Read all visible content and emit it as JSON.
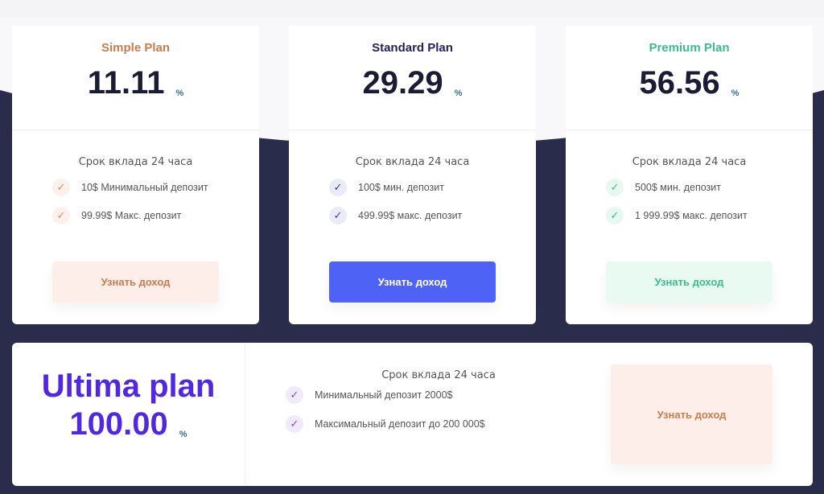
{
  "colors": {
    "background_dark": "#2a2c4b",
    "simple": "#c97d4e",
    "standard": "#23235b",
    "premium": "#3dbc8c",
    "ultima": "#5028e0",
    "standard_button": "#4e62f5"
  },
  "plans": [
    {
      "name": "Simple Plan",
      "rate": "11.11",
      "percent": "%",
      "term": "Срок вклада 24 часа",
      "features": [
        "10$ Минимальный депозит",
        "99.99$ Макс. депозит"
      ],
      "button": "Узнать доход",
      "check_icon": "check-icon"
    },
    {
      "name": "Standard Plan",
      "rate": "29.29",
      "percent": "%",
      "term": "Срок вклада 24 часа",
      "features": [
        "100$ мин. депозит",
        "499.99$ макс. депозит"
      ],
      "button": "Узнать доход",
      "check_icon": "check-icon"
    },
    {
      "name": "Premium Plan",
      "rate": "56.56",
      "percent": "%",
      "term": "Срок вклада 24 часа",
      "features": [
        "500$ мин. депозит",
        "1 999.99$ макс. депозит"
      ],
      "button": "Узнать доход",
      "check_icon": "check-icon"
    }
  ],
  "ultima": {
    "name": "Ultima plan",
    "rate": "100.00",
    "percent": "%",
    "term": "Срок вклада 24 часа",
    "features": [
      "Минимальный депозит 2000$",
      "Максимальный депозит до 200 000$"
    ],
    "button": "Узнать доход"
  }
}
